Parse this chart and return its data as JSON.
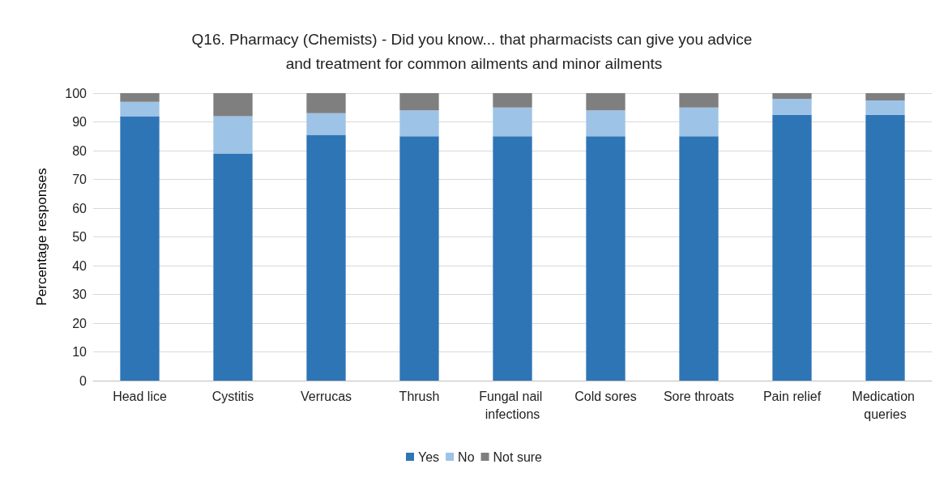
{
  "chart_data": {
    "type": "bar",
    "stacked": true,
    "title": "Q16. Pharmacy (Chemists) - Did you know... that pharmacists can give you advice and treatment for common ailments and minor ailments",
    "ylabel": "Percentage responses",
    "categories": [
      "Head lice",
      "Cystitis",
      "Verrucas",
      "Thrush",
      "Fungal nail infections",
      "Cold sores",
      "Sore throats",
      "Pain relief",
      "Medication queries"
    ],
    "series": [
      {
        "name": "Yes",
        "color": "#2e75b6",
        "values": [
          92,
          79,
          85.5,
          85,
          85,
          85,
          85,
          92.5,
          92.5
        ]
      },
      {
        "name": "No",
        "color": "#9dc3e6",
        "values": [
          5,
          13,
          7.5,
          9,
          10,
          9,
          10,
          5.5,
          5
        ]
      },
      {
        "name": "Not sure",
        "color": "#7f7f7f",
        "values": [
          3,
          8,
          7,
          6,
          5,
          6,
          5,
          2,
          2.5
        ]
      }
    ],
    "ylim": [
      0,
      100
    ],
    "yticks": [
      0,
      10,
      20,
      30,
      40,
      50,
      60,
      70,
      80,
      90,
      100
    ],
    "grid": "y",
    "legend": "bottom"
  }
}
